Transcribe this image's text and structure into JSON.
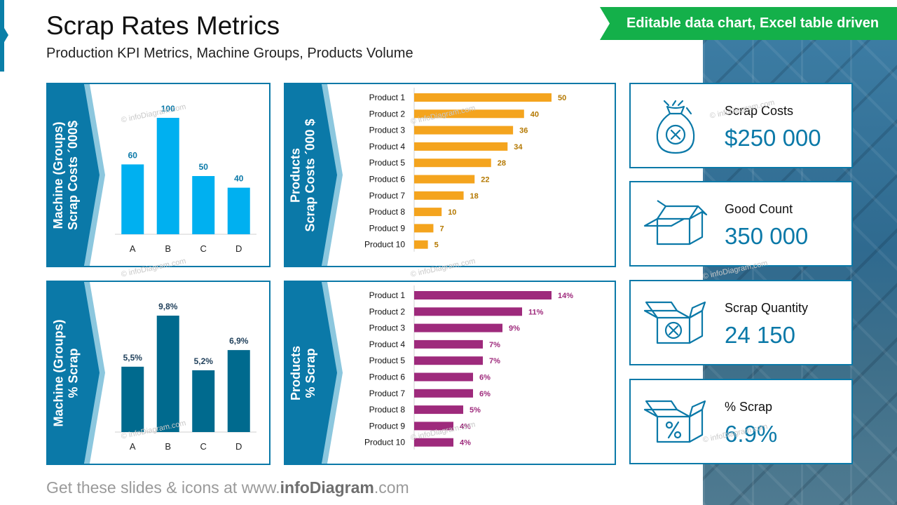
{
  "header": {
    "title": "Scrap Rates Metrics",
    "subtitle": "Production KPI Metrics, Machine Groups, Products Volume",
    "banner": "Editable data chart, Excel table driven"
  },
  "watermark": "© infoDiagram.com",
  "panels": {
    "p1": {
      "label_line1": "Machine (Groups)",
      "label_line2": "Scrap Costs ´000$"
    },
    "p2": {
      "label_line1": "Products",
      "label_line2": "Scrap Costs ´000 $"
    },
    "p3": {
      "label_line1": "Machine (Groups)",
      "label_line2": "% Scrap"
    },
    "p4": {
      "label_line1": "Products",
      "label_line2": "% Scrap"
    }
  },
  "colors": {
    "brand_blue": "#0B79A8",
    "light_blue_bar": "#00B0F0",
    "dark_blue_bar": "#006A8E",
    "orange_bar": "#F4A41E",
    "purple_bar": "#9E2A7C",
    "green_banner": "#14B04A"
  },
  "chart_data": [
    {
      "type": "bar",
      "categories": [
        "A",
        "B",
        "C",
        "D"
      ],
      "values": [
        60,
        100,
        50,
        40
      ],
      "labels": [
        "60",
        "100",
        "50",
        "40"
      ],
      "ylabel": "Scrap Costs ´000$",
      "ylim": [
        0,
        100
      ]
    },
    {
      "type": "bar",
      "orientation": "horizontal",
      "categories": [
        "Product 1",
        "Product 2",
        "Product 3",
        "Product 4",
        "Product 5",
        "Product 6",
        "Product 7",
        "Product 8",
        "Product 9",
        "Product 10"
      ],
      "values": [
        50,
        40,
        36,
        34,
        28,
        22,
        18,
        10,
        7,
        5
      ],
      "labels": [
        "50",
        "40",
        "36",
        "34",
        "28",
        "22",
        "18",
        "10",
        "7",
        "5"
      ],
      "ylabel": "Scrap Costs ´000 $",
      "xlim": [
        0,
        50
      ]
    },
    {
      "type": "bar",
      "categories": [
        "A",
        "B",
        "C",
        "D"
      ],
      "values": [
        5.5,
        9.8,
        5.2,
        6.9
      ],
      "labels": [
        "5,5%",
        "9,8%",
        "5,2%",
        "6,9%"
      ],
      "ylabel": "% Scrap",
      "ylim": [
        0,
        9.8
      ]
    },
    {
      "type": "bar",
      "orientation": "horizontal",
      "categories": [
        "Product 1",
        "Product 2",
        "Product 3",
        "Product 4",
        "Product 5",
        "Product 6",
        "Product 7",
        "Product 8",
        "Product 9",
        "Product 10"
      ],
      "values": [
        14,
        11,
        9,
        7,
        7,
        6,
        6,
        5,
        4,
        4
      ],
      "labels": [
        "14%",
        "11%",
        "9%",
        "7%",
        "7%",
        "6%",
        "6%",
        "5%",
        "4%",
        "4%"
      ],
      "ylabel": "% Scrap",
      "xlim": [
        0,
        14
      ]
    }
  ],
  "kpis": [
    {
      "label": "Scrap Costs",
      "value": "$250 000",
      "icon": "money-bag-x-icon"
    },
    {
      "label": "Good Count",
      "value": "350 000",
      "icon": "open-box-icon"
    },
    {
      "label": "Scrap Quantity",
      "value": "24 150",
      "icon": "box-x-icon"
    },
    {
      "label": "% Scrap",
      "value": "6.9%",
      "icon": "box-percent-icon"
    }
  ],
  "footer": {
    "prefix": "Get these slides & icons at www.",
    "brand": "infoDiagram",
    "suffix": ".com"
  }
}
